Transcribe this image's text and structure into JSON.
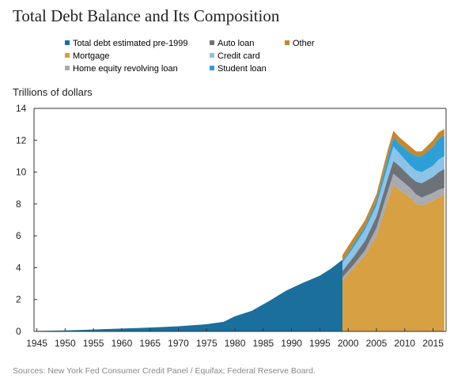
{
  "title": "Total Debt Balance and Its Composition",
  "source": "Sources: New York Fed Consumer Credit Panel / Equifax; Federal Reserve Board.",
  "chart_data": {
    "type": "area",
    "title": "Total Debt Balance and Its Composition",
    "ylabel": "Trillions of dollars",
    "xlabel": "",
    "xlim": [
      1944.5,
      2017.3
    ],
    "ylim": [
      0,
      14
    ],
    "yticks": [
      "0",
      "2",
      "4",
      "6",
      "8",
      "10",
      "12",
      "14"
    ],
    "xticks": [
      "1945",
      "1950",
      "1955",
      "1960",
      "1965",
      "1970",
      "1975",
      "1980",
      "1985",
      "1990",
      "1995",
      "2000",
      "2005",
      "2010",
      "2015"
    ],
    "grid": false,
    "legend_position": "top",
    "legend": [
      {
        "name": "Total debt estimated pre-1999",
        "color": "#1a6f9c"
      },
      {
        "name": "Auto loan",
        "color": "#6d7278"
      },
      {
        "name": "Other",
        "color": "#c7872a"
      },
      {
        "name": "Mortgage",
        "color": "#d6a043"
      },
      {
        "name": "Credit card",
        "color": "#8cc4e8"
      },
      {
        "name": "Home equity revolving loan",
        "color": "#a8abaf"
      },
      {
        "name": "Student loan",
        "color": "#2e9fd6"
      }
    ],
    "pre1999": {
      "name": "Total debt estimated pre-1999",
      "x": [
        1945,
        1950,
        1955,
        1960,
        1965,
        1970,
        1975,
        1978,
        1980,
        1983,
        1986,
        1989,
        1992,
        1995,
        1997,
        1999
      ],
      "y": [
        0.03,
        0.06,
        0.12,
        0.18,
        0.24,
        0.32,
        0.45,
        0.6,
        0.95,
        1.3,
        1.9,
        2.55,
        3.05,
        3.5,
        3.95,
        4.5
      ]
    },
    "x": [
      1999,
      2001,
      2003,
      2005,
      2007,
      2008,
      2009,
      2011,
      2012,
      2013,
      2015,
      2016,
      2017
    ],
    "series": [
      {
        "name": "Mortgage",
        "values": [
          3.2,
          4.0,
          4.8,
          6.0,
          8.2,
          9.2,
          8.9,
          8.4,
          8.0,
          7.9,
          8.2,
          8.4,
          8.6
        ]
      },
      {
        "name": "Home equity revolving loan",
        "values": [
          0.2,
          0.2,
          0.3,
          0.5,
          0.6,
          0.7,
          0.7,
          0.6,
          0.6,
          0.5,
          0.5,
          0.5,
          0.4
        ]
      },
      {
        "name": "Auto loan",
        "values": [
          0.4,
          0.5,
          0.6,
          0.7,
          0.8,
          0.8,
          0.8,
          0.7,
          0.8,
          0.9,
          1.0,
          1.1,
          1.2
        ]
      },
      {
        "name": "Credit card",
        "values": [
          0.5,
          0.6,
          0.7,
          0.7,
          0.8,
          0.9,
          0.8,
          0.7,
          0.7,
          0.7,
          0.7,
          0.8,
          0.8
        ]
      },
      {
        "name": "Student loan",
        "values": [
          0.1,
          0.2,
          0.2,
          0.3,
          0.5,
          0.6,
          0.6,
          0.8,
          0.9,
          1.0,
          1.2,
          1.3,
          1.3
        ]
      },
      {
        "name": "Other",
        "values": [
          0.4,
          0.4,
          0.4,
          0.4,
          0.5,
          0.4,
          0.4,
          0.4,
          0.3,
          0.3,
          0.4,
          0.4,
          0.4
        ]
      }
    ]
  }
}
